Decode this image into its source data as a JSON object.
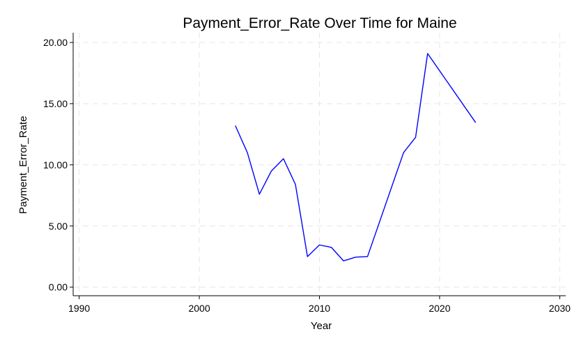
{
  "chart_data": {
    "type": "line",
    "title": "Payment_Error_Rate Over Time for Maine",
    "xlabel": "Year",
    "ylabel": "Payment_Error_Rate",
    "xlim": [
      1989.5,
      2030.5
    ],
    "ylim": [
      -0.7,
      20.8
    ],
    "x_ticks": [
      1990,
      2000,
      2010,
      2020,
      2030
    ],
    "x_tick_labels": [
      "1990",
      "2000",
      "2010",
      "2020",
      "2030"
    ],
    "y_ticks": [
      0,
      5,
      10,
      15,
      20
    ],
    "y_tick_labels": [
      "0.00",
      "5.00",
      "10.00",
      "15.00",
      "20.00"
    ],
    "grid": true,
    "series": [
      {
        "color": "#0000ff",
        "x": [
          2003,
          2004,
          2005,
          2006,
          2007,
          2008,
          2009,
          2010,
          2011,
          2012,
          2013,
          2014,
          2017,
          2018,
          2019,
          2023
        ],
        "y": [
          13.2,
          11.0,
          7.6,
          9.5,
          10.5,
          8.4,
          2.5,
          3.45,
          3.25,
          2.15,
          2.45,
          2.5,
          11.0,
          12.25,
          19.1,
          13.45
        ]
      }
    ]
  }
}
